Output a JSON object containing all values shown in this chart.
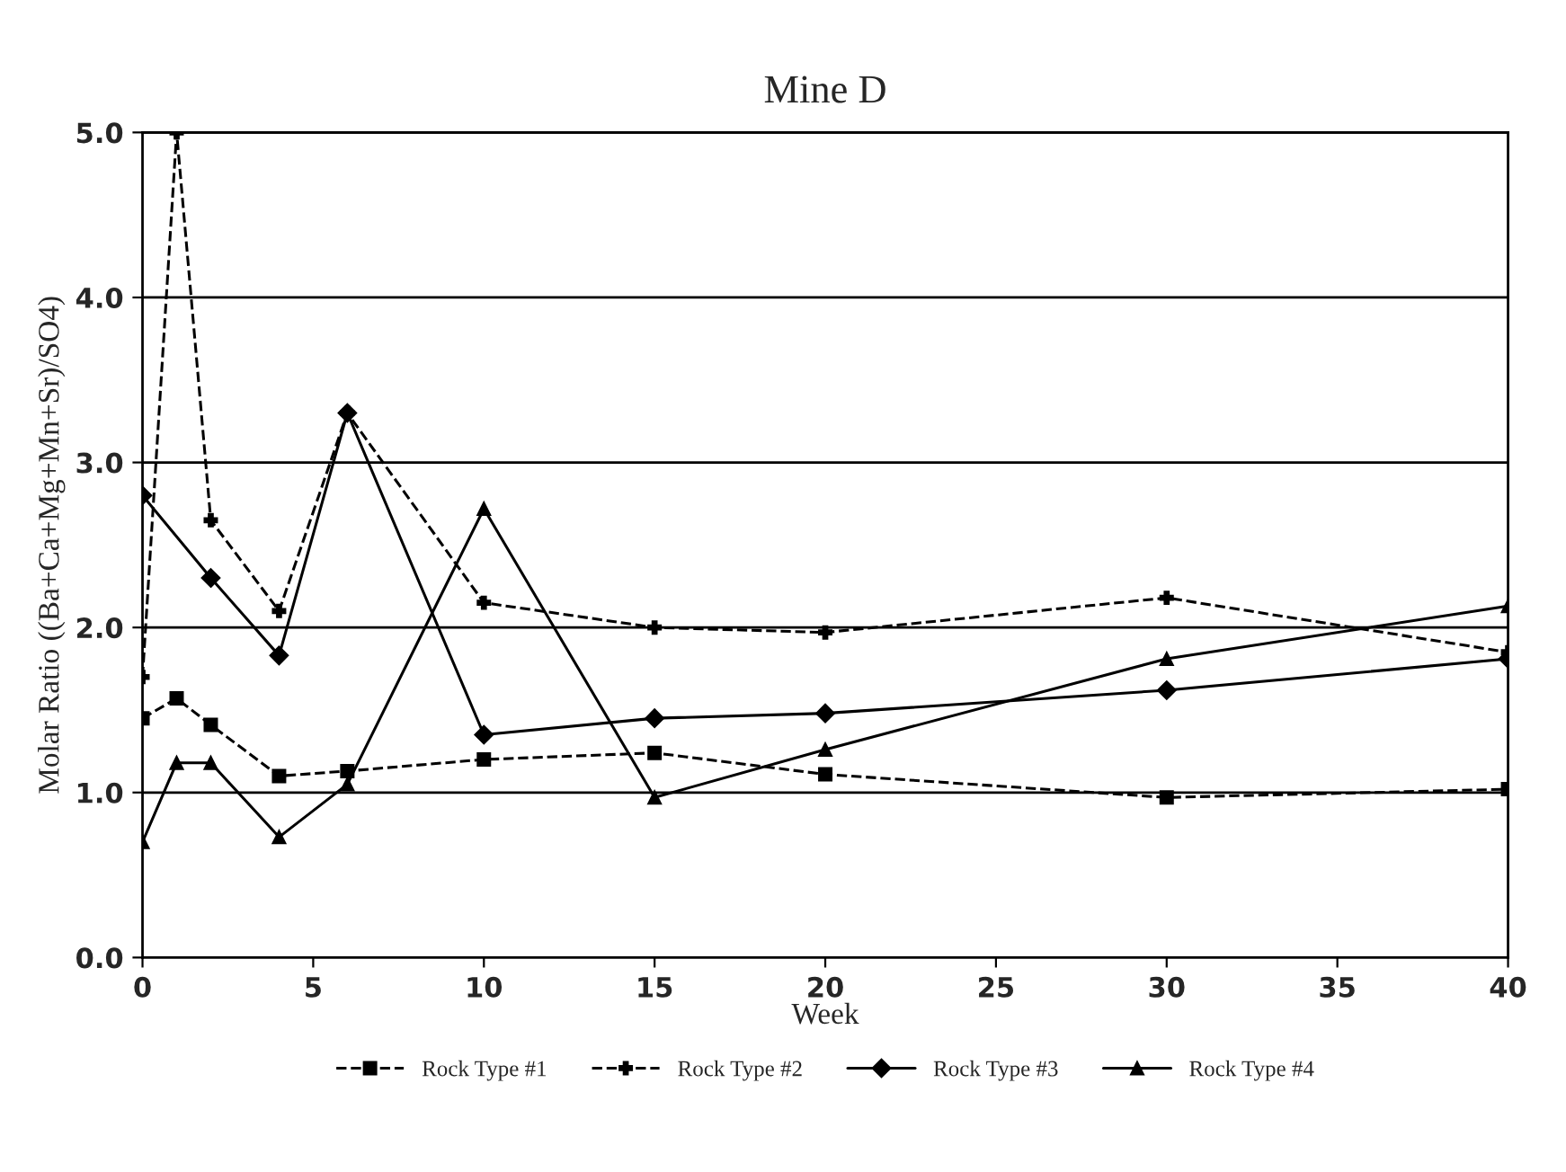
{
  "chart_data": {
    "type": "line",
    "title": "Mine D",
    "xlabel": "Week",
    "ylabel": "Molar Ratio ((Ba+Ca+Mg+Mn+Sr)/SO4)",
    "x": [
      0,
      1,
      2,
      4,
      6,
      10,
      15,
      20,
      30,
      40
    ],
    "series": [
      {
        "name": "Rock Type #1",
        "color": "#000000",
        "marker": "square",
        "line_style": "dashed",
        "values": [
          1.45,
          1.57,
          1.41,
          1.1,
          1.13,
          1.2,
          1.24,
          1.11,
          0.97,
          1.02
        ]
      },
      {
        "name": "Rock Type #2",
        "color": "#000000",
        "marker": "cross",
        "line_style": "dashed",
        "values": [
          1.7,
          5.0,
          2.65,
          2.1,
          3.3,
          2.15,
          2.0,
          1.97,
          2.18,
          1.85
        ]
      },
      {
        "name": "Rock Type #3",
        "color": "#000000",
        "marker": "diamond",
        "line_style": "solid",
        "values": [
          2.8,
          null,
          2.3,
          1.83,
          3.3,
          1.35,
          1.45,
          1.48,
          1.62,
          1.81
        ]
      },
      {
        "name": "Rock Type #4",
        "color": "#000000",
        "marker": "triangle",
        "line_style": "solid",
        "values": [
          0.7,
          1.18,
          1.18,
          0.73,
          1.05,
          2.72,
          0.97,
          1.26,
          1.81,
          2.13
        ]
      }
    ],
    "xlim": [
      0,
      40
    ],
    "xticks": [
      0,
      5,
      10,
      15,
      20,
      25,
      30,
      35,
      40
    ],
    "ylim": [
      0,
      5
    ],
    "yticks": [
      {
        "value": 0,
        "label": "0.0"
      },
      {
        "value": 1,
        "label": "1.0"
      },
      {
        "value": 2,
        "label": "2.0"
      },
      {
        "value": 3,
        "label": "3.0"
      },
      {
        "value": 4,
        "label": "4.0"
      },
      {
        "value": 5,
        "label": "5.0"
      }
    ],
    "grid": "y",
    "legend": "bottom"
  }
}
